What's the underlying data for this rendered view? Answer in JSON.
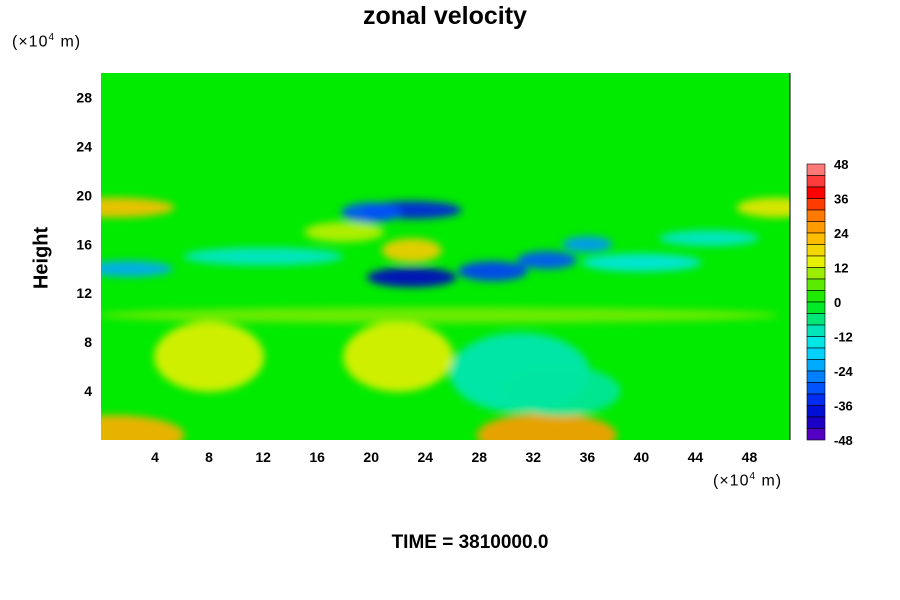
{
  "title": "zonal velocity",
  "y_unit": {
    "prefix": "(×10",
    "exp": "4",
    "suffix": " m)"
  },
  "x_unit": {
    "prefix": "(×10",
    "exp": "4",
    "suffix": " m)"
  },
  "footer": "TIME = 3810000.0",
  "chart_data": {
    "type": "heatmap",
    "title": "zonal velocity",
    "ylabel": "Height",
    "xlim": [
      0,
      51
    ],
    "ylim": [
      0,
      30
    ],
    "x_ticks": [
      "4",
      "8",
      "12",
      "16",
      "20",
      "24",
      "28",
      "32",
      "36",
      "40",
      "44",
      "48"
    ],
    "y_ticks": [
      "4",
      "8",
      "12",
      "16",
      "20",
      "24",
      "28"
    ],
    "colorbar": {
      "range": [
        -48,
        48
      ],
      "step": 4,
      "tick_labels": [
        "48",
        "36",
        "24",
        "12",
        "0",
        "-12",
        "-24",
        "-36",
        "-48"
      ]
    },
    "approximate_field": [
      {
        "x": 1,
        "y": 0.4,
        "value": 24
      },
      {
        "x": 33,
        "y": 0.4,
        "value": 26
      },
      {
        "x": 8,
        "y": 6.8,
        "value": 14
      },
      {
        "x": 22,
        "y": 6.8,
        "value": 14
      },
      {
        "x": 31,
        "y": 5.5,
        "value": -10
      },
      {
        "x": 34,
        "y": 4,
        "value": -8
      },
      {
        "x": 1,
        "y": 19,
        "value": 22
      },
      {
        "x": 50,
        "y": 19,
        "value": 16
      },
      {
        "x": 23,
        "y": 15.5,
        "value": 20
      },
      {
        "x": 18,
        "y": 17,
        "value": 12
      },
      {
        "x": 23,
        "y": 18.8,
        "value": -36
      },
      {
        "x": 20,
        "y": 18.6,
        "value": -30
      },
      {
        "x": 23,
        "y": 13.3,
        "value": -40
      },
      {
        "x": 29,
        "y": 13.8,
        "value": -32
      },
      {
        "x": 33,
        "y": 14.7,
        "value": -30
      },
      {
        "x": 36,
        "y": 16,
        "value": -24
      },
      {
        "x": 2,
        "y": 14,
        "value": -22
      },
      {
        "x": 12,
        "y": 15,
        "value": -12
      },
      {
        "x": 40,
        "y": 14.5,
        "value": -14
      },
      {
        "x": 45,
        "y": 16.5,
        "value": -12
      },
      {
        "x": 25,
        "y": 10.2,
        "value": 8
      }
    ],
    "colors": {
      "background_field": "#00ee00",
      "positive_max": "#ff9898",
      "negative_max": "#7000c0"
    }
  }
}
